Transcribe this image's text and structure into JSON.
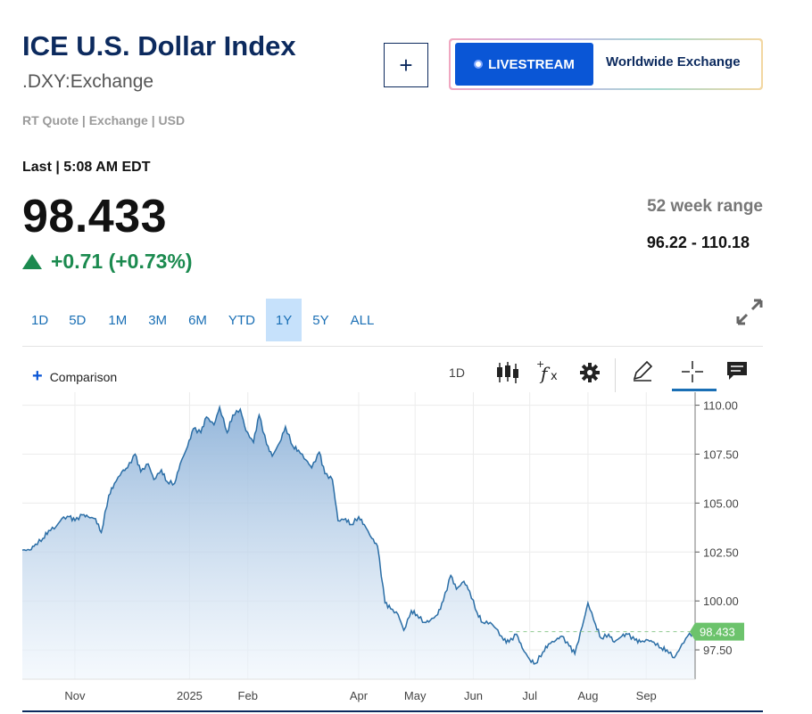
{
  "header": {
    "title": "ICE U.S. Dollar Index",
    "symbol": ".DXY:Exchange",
    "quote_info": "RT Quote | Exchange | USD",
    "add_label": "+",
    "livestream_label": "LIVESTREAM",
    "exchange_label": "Worldwide Exchange"
  },
  "quote": {
    "last_label": "Last | 5:08 AM EDT",
    "price": "98.433",
    "change": "+0.71 (+0.73%)",
    "week_range_label": "52 week range",
    "week_range": "96.22 - 110.18",
    "up_color": "#1b8a4f"
  },
  "ranges": {
    "items": [
      "1D",
      "5D",
      "1M",
      "3M",
      "6M",
      "YTD",
      "1Y",
      "5Y",
      "ALL"
    ],
    "active": "1Y"
  },
  "toolbar": {
    "comparison_label": "Comparison",
    "interval_label": "1D",
    "icons": [
      "candlestick-icon",
      "function-icon",
      "gear-icon",
      "pencil-icon",
      "crosshair-icon",
      "comment-icon"
    ]
  },
  "chart_data": {
    "type": "area",
    "title": "",
    "xlabel": "",
    "ylabel": "",
    "ylim": [
      96.0,
      110.3
    ],
    "y_ticks": [
      "110.00",
      "107.50",
      "105.00",
      "102.50",
      "100.00",
      "97.50"
    ],
    "x_ticks": [
      {
        "label": "Nov",
        "x": "2024-11-01"
      },
      {
        "label": "2025",
        "x": "2025-01-01"
      },
      {
        "label": "Feb",
        "x": "2025-02-01"
      },
      {
        "label": "Apr",
        "x": "2025-04-01"
      },
      {
        "label": "May",
        "x": "2025-05-01"
      },
      {
        "label": "Jun",
        "x": "2025-06-01"
      },
      {
        "label": "Jul",
        "x": "2025-07-01"
      },
      {
        "label": "Aug",
        "x": "2025-08-01"
      },
      {
        "label": "Sep",
        "x": "2025-09-01"
      }
    ],
    "x_range": [
      "2024-10-04",
      "2025-09-27"
    ],
    "last_value": "98.433",
    "line_color": "#2b6ea6",
    "badge_color": "#6cc36c",
    "grid": true,
    "series": [
      {
        "points": [
          [
            "2024-10-04",
            102.6
          ],
          [
            "2024-10-08",
            102.6
          ],
          [
            "2024-10-11",
            102.9
          ],
          [
            "2024-10-15",
            103.2
          ],
          [
            "2024-10-18",
            103.6
          ],
          [
            "2024-10-22",
            103.8
          ],
          [
            "2024-10-25",
            104.2
          ],
          [
            "2024-10-29",
            104.3
          ],
          [
            "2024-11-01",
            104.1
          ],
          [
            "2024-11-05",
            104.4
          ],
          [
            "2024-11-08",
            104.3
          ],
          [
            "2024-11-12",
            104.2
          ],
          [
            "2024-11-15",
            103.5
          ],
          [
            "2024-11-19",
            105.4
          ],
          [
            "2024-11-22",
            106.0
          ],
          [
            "2024-11-26",
            106.6
          ],
          [
            "2024-11-29",
            106.8
          ],
          [
            "2024-12-03",
            107.5
          ],
          [
            "2024-12-06",
            106.6
          ],
          [
            "2024-12-10",
            107.0
          ],
          [
            "2024-12-13",
            106.2
          ],
          [
            "2024-12-17",
            106.7
          ],
          [
            "2024-12-20",
            106.1
          ],
          [
            "2024-12-24",
            106.0
          ],
          [
            "2024-12-27",
            107.0
          ],
          [
            "2024-12-31",
            107.9
          ],
          [
            "2025-01-03",
            108.8
          ],
          [
            "2025-01-07",
            108.6
          ],
          [
            "2025-01-10",
            109.4
          ],
          [
            "2025-01-14",
            109.0
          ],
          [
            "2025-01-17",
            109.9
          ],
          [
            "2025-01-21",
            108.6
          ],
          [
            "2025-01-24",
            109.5
          ],
          [
            "2025-01-28",
            109.8
          ],
          [
            "2025-01-31",
            108.7
          ],
          [
            "2025-02-04",
            108.1
          ],
          [
            "2025-02-07",
            109.5
          ],
          [
            "2025-02-11",
            108.0
          ],
          [
            "2025-02-14",
            107.4
          ],
          [
            "2025-02-18",
            108.1
          ],
          [
            "2025-02-21",
            108.9
          ],
          [
            "2025-02-25",
            107.9
          ],
          [
            "2025-02-28",
            107.7
          ],
          [
            "2025-03-04",
            107.2
          ],
          [
            "2025-03-07",
            106.8
          ],
          [
            "2025-03-11",
            107.6
          ],
          [
            "2025-03-14",
            106.5
          ],
          [
            "2025-03-18",
            106.2
          ],
          [
            "2025-03-21",
            104.1
          ],
          [
            "2025-03-25",
            104.2
          ],
          [
            "2025-03-28",
            103.9
          ],
          [
            "2025-04-01",
            104.3
          ],
          [
            "2025-04-04",
            103.9
          ],
          [
            "2025-04-08",
            103.2
          ],
          [
            "2025-04-11",
            102.8
          ],
          [
            "2025-04-15",
            99.9
          ],
          [
            "2025-04-18",
            99.6
          ],
          [
            "2025-04-22",
            99.3
          ],
          [
            "2025-04-25",
            98.5
          ],
          [
            "2025-04-29",
            99.5
          ],
          [
            "2025-05-02",
            99.3
          ],
          [
            "2025-05-06",
            98.9
          ],
          [
            "2025-05-09",
            99.0
          ],
          [
            "2025-05-13",
            99.3
          ],
          [
            "2025-05-16",
            100.0
          ],
          [
            "2025-05-20",
            101.3
          ],
          [
            "2025-05-23",
            100.6
          ],
          [
            "2025-05-27",
            101.0
          ],
          [
            "2025-05-30",
            100.5
          ],
          [
            "2025-06-03",
            99.4
          ],
          [
            "2025-06-06",
            98.9
          ],
          [
            "2025-06-10",
            98.9
          ],
          [
            "2025-06-13",
            98.6
          ],
          [
            "2025-06-17",
            98.0
          ],
          [
            "2025-06-20",
            97.9
          ],
          [
            "2025-06-24",
            98.3
          ],
          [
            "2025-06-27",
            97.6
          ],
          [
            "2025-07-01",
            97.0
          ],
          [
            "2025-07-04",
            96.8
          ],
          [
            "2025-07-08",
            97.4
          ],
          [
            "2025-07-11",
            97.8
          ],
          [
            "2025-07-15",
            98.0
          ],
          [
            "2025-07-18",
            98.2
          ],
          [
            "2025-07-22",
            97.7
          ],
          [
            "2025-07-25",
            97.3
          ],
          [
            "2025-07-29",
            98.7
          ],
          [
            "2025-08-01",
            99.9
          ],
          [
            "2025-08-05",
            98.8
          ],
          [
            "2025-08-08",
            98.1
          ],
          [
            "2025-08-12",
            98.3
          ],
          [
            "2025-08-15",
            97.9
          ],
          [
            "2025-08-19",
            98.2
          ],
          [
            "2025-08-22",
            98.3
          ],
          [
            "2025-08-26",
            98.0
          ],
          [
            "2025-08-29",
            97.9
          ],
          [
            "2025-09-02",
            98.0
          ],
          [
            "2025-09-05",
            97.9
          ],
          [
            "2025-09-09",
            97.6
          ],
          [
            "2025-09-12",
            97.5
          ],
          [
            "2025-09-16",
            97.1
          ],
          [
            "2025-09-19",
            97.6
          ],
          [
            "2025-09-23",
            98.2
          ],
          [
            "2025-09-27",
            98.4
          ]
        ]
      }
    ]
  }
}
